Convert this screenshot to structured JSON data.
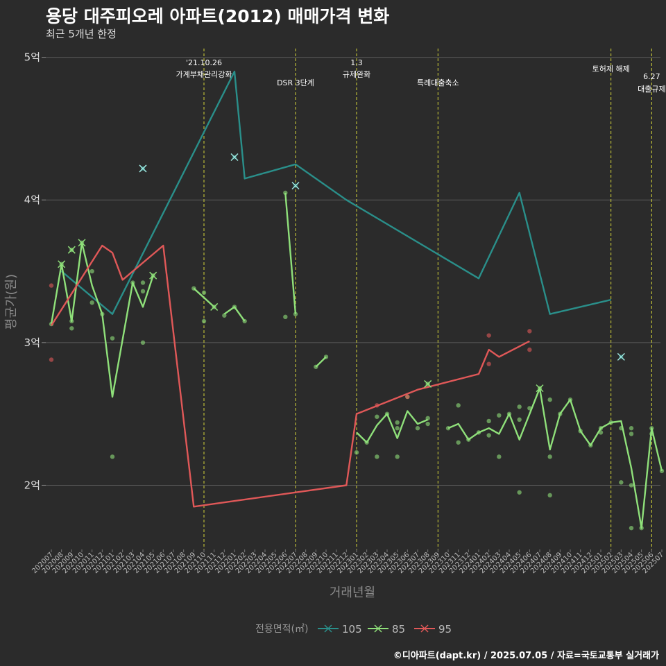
{
  "header": {
    "title": "용당 대주피오레 아파트(2012) 매매가격 변화",
    "subtitle": "최근 5개년 한정"
  },
  "caption": "©디아파트(dapt.kr) / 2025.07.05 / 자료=국토교통부 실거래가",
  "colors": {
    "background": "#2b2b2b",
    "grid": "#5a5a5a",
    "event_line": "#d4d43a",
    "series_105": "#2a8f8a",
    "series_85": "#8fe07a",
    "series_95": "#e05858"
  },
  "chart_data": {
    "type": "line",
    "xlabel": "거래년월",
    "ylabel": "평균가(원)",
    "ylim": [
      1.55,
      5.1
    ],
    "yticks": [
      {
        "v": 2,
        "label": "2억"
      },
      {
        "v": 3,
        "label": "3억"
      },
      {
        "v": 4,
        "label": "4억"
      },
      {
        "v": 5,
        "label": "5억"
      }
    ],
    "categories": [
      "202007",
      "202008",
      "202009",
      "202010",
      "202011",
      "202012",
      "202101",
      "202102",
      "202103",
      "202104",
      "202105",
      "202106",
      "202107",
      "202108",
      "202109",
      "202110",
      "202111",
      "202112",
      "202201",
      "202202",
      "202203",
      "202204",
      "202205",
      "202206",
      "202207",
      "202208",
      "202209",
      "202210",
      "202211",
      "202212",
      "202301",
      "202302",
      "202303",
      "202304",
      "202305",
      "202306",
      "202307",
      "202308",
      "202309",
      "202310",
      "202311",
      "202312",
      "202401",
      "202402",
      "202403",
      "202404",
      "202405",
      "202406",
      "202407",
      "202408",
      "202409",
      "202410",
      "202411",
      "202412",
      "202501",
      "202502",
      "202503",
      "202504",
      "202505",
      "202506",
      "202507"
    ],
    "legend": {
      "title": "전용면적(㎡)",
      "position": "bottom"
    },
    "grid": true,
    "events": [
      {
        "x": "202110",
        "label1": "'21.10.26",
        "label2": "가계부채관리강화"
      },
      {
        "x": "202207",
        "label1": "",
        "label2": "DSR 3단계"
      },
      {
        "x": "202301",
        "label1": "1.3",
        "label2": "규제완화"
      },
      {
        "x": "202309",
        "label1": "",
        "label2": "특례대출축소"
      },
      {
        "x": "202502",
        "label1": "",
        "label2": "토허제 해제"
      },
      {
        "x": "202506",
        "label1": "6.27",
        "label2": "대출규제"
      }
    ],
    "series": [
      {
        "name": "105",
        "color": "#2a8f8a",
        "line": [
          [
            "202008",
            3.5
          ],
          [
            "202101",
            3.2
          ],
          [
            "202201",
            4.9
          ],
          [
            "202202",
            4.15
          ],
          [
            "202207",
            4.25
          ],
          [
            "202212",
            4.0
          ],
          [
            "202401",
            3.45
          ],
          [
            "202405",
            4.05
          ],
          [
            "202408",
            3.2
          ],
          [
            "202502",
            3.3
          ]
        ],
        "points": [
          [
            "202104",
            4.22
          ],
          [
            "202201",
            4.3
          ],
          [
            "202207",
            4.1
          ],
          [
            "202503",
            2.9
          ]
        ]
      },
      {
        "name": "85",
        "color": "#8fe07a",
        "line": [
          [
            "202007",
            3.13
          ],
          [
            "202008",
            3.55
          ],
          [
            "202009",
            3.15
          ],
          [
            "202010",
            3.7
          ],
          [
            "202011",
            3.4
          ],
          [
            "202012",
            3.2
          ],
          [
            "202101",
            2.62
          ],
          [
            "202103",
            3.42
          ],
          [
            "202104",
            3.25
          ],
          [
            "202105",
            3.47
          ],
          [
            null,
            null
          ],
          [
            "202109",
            3.38
          ],
          [
            "202111",
            3.25
          ],
          [
            null,
            null
          ],
          [
            "202112",
            3.2
          ],
          [
            "202201",
            3.25
          ],
          [
            "202202",
            3.15
          ],
          [
            null,
            null
          ],
          [
            "202206",
            4.05
          ],
          [
            "202207",
            3.2
          ],
          [
            null,
            null
          ],
          [
            "202209",
            2.83
          ],
          [
            "202210",
            2.9
          ],
          [
            null,
            null
          ],
          [
            "202301",
            2.37
          ],
          [
            "202302",
            2.3
          ],
          [
            "202303",
            2.42
          ],
          [
            "202304",
            2.5
          ],
          [
            "202305",
            2.33
          ],
          [
            "202306",
            2.52
          ],
          [
            "202307",
            2.43
          ],
          [
            "202308",
            2.46
          ],
          [
            null,
            null
          ],
          [
            "202310",
            2.4
          ],
          [
            "202311",
            2.43
          ],
          [
            "202312",
            2.32
          ],
          [
            "202401",
            2.37
          ],
          [
            "202402",
            2.4
          ],
          [
            "202403",
            2.36
          ],
          [
            "202404",
            2.5
          ],
          [
            "202405",
            2.32
          ],
          [
            "202407",
            2.68
          ],
          [
            "202408",
            2.25
          ],
          [
            "202409",
            2.5
          ],
          [
            "202410",
            2.6
          ],
          [
            "202411",
            2.38
          ],
          [
            "202412",
            2.28
          ],
          [
            "202501",
            2.4
          ],
          [
            "202502",
            2.44
          ],
          [
            "202503",
            2.45
          ],
          [
            "202504",
            2.12
          ],
          [
            "202505",
            1.7
          ],
          [
            "202506",
            2.4
          ],
          [
            "202507",
            2.1
          ]
        ],
        "points": [
          [
            "202007",
            3.13
          ],
          [
            "202008",
            3.55
          ],
          [
            "202009",
            3.65
          ],
          [
            "202009",
            3.1
          ],
          [
            "202009",
            3.15
          ],
          [
            "202010",
            3.7
          ],
          [
            "202011",
            3.5
          ],
          [
            "202011",
            3.28
          ],
          [
            "202012",
            3.2
          ],
          [
            "202101",
            3.03
          ],
          [
            "202101",
            2.2
          ],
          [
            "202103",
            3.42
          ],
          [
            "202104",
            3.42
          ],
          [
            "202104",
            3.36
          ],
          [
            "202104",
            3.0
          ],
          [
            "202105",
            3.47
          ],
          [
            "202109",
            3.38
          ],
          [
            "202110",
            3.35
          ],
          [
            "202110",
            3.15
          ],
          [
            "202111",
            3.25
          ],
          [
            "202112",
            3.19
          ],
          [
            "202201",
            3.25
          ],
          [
            "202202",
            3.15
          ],
          [
            "202206",
            3.18
          ],
          [
            "202206",
            4.05
          ],
          [
            "202207",
            3.2
          ],
          [
            "202209",
            2.83
          ],
          [
            "202210",
            2.9
          ],
          [
            "202301",
            2.23
          ],
          [
            "202302",
            2.3
          ],
          [
            "202303",
            2.48
          ],
          [
            "202303",
            2.2
          ],
          [
            "202304",
            2.5
          ],
          [
            "202305",
            2.44
          ],
          [
            "202305",
            2.4
          ],
          [
            "202305",
            2.2
          ],
          [
            "202306",
            2.62
          ],
          [
            "202307",
            2.4
          ],
          [
            "202308",
            2.71
          ],
          [
            "202308",
            2.47
          ],
          [
            "202308",
            2.43
          ],
          [
            "202310",
            2.4
          ],
          [
            "202311",
            2.56
          ],
          [
            "202311",
            2.3
          ],
          [
            "202312",
            2.32
          ],
          [
            "202401",
            2.37
          ],
          [
            "202402",
            2.45
          ],
          [
            "202402",
            2.35
          ],
          [
            "202403",
            2.49
          ],
          [
            "202403",
            2.2
          ],
          [
            "202404",
            2.5
          ],
          [
            "202405",
            2.55
          ],
          [
            "202405",
            2.46
          ],
          [
            "202405",
            1.95
          ],
          [
            "202406",
            2.54
          ],
          [
            "202407",
            2.68
          ],
          [
            "202408",
            2.6
          ],
          [
            "202408",
            2.2
          ],
          [
            "202408",
            1.93
          ],
          [
            "202409",
            2.5
          ],
          [
            "202410",
            2.6
          ],
          [
            "202411",
            2.38
          ],
          [
            "202412",
            2.28
          ],
          [
            "202501",
            2.4
          ],
          [
            "202501",
            2.37
          ],
          [
            "202502",
            2.44
          ],
          [
            "202503",
            2.4
          ],
          [
            "202503",
            2.02
          ],
          [
            "202504",
            2.4
          ],
          [
            "202504",
            2.36
          ],
          [
            "202504",
            2.0
          ],
          [
            "202504",
            1.7
          ],
          [
            "202505",
            1.7
          ],
          [
            "202506",
            2.4
          ],
          [
            "202506",
            2.36
          ],
          [
            "202507",
            2.1
          ]
        ]
      },
      {
        "name": "95",
        "color": "#e05858",
        "line": [
          [
            "202007",
            3.12
          ],
          [
            "202012",
            3.68
          ],
          [
            "202101",
            3.63
          ],
          [
            "202102",
            3.44
          ],
          [
            "202106",
            3.68
          ],
          [
            "202109",
            1.85
          ],
          [
            "202212",
            2.0
          ],
          [
            "202301",
            2.5
          ],
          [
            "202307",
            2.67
          ],
          [
            "202401",
            2.78
          ],
          [
            "202402",
            2.95
          ],
          [
            "202403",
            2.9
          ],
          [
            "202406",
            3.01
          ]
        ],
        "points": [
          [
            "202007",
            3.4
          ],
          [
            "202007",
            2.88
          ],
          [
            "202303",
            2.56
          ],
          [
            "202306",
            2.62
          ],
          [
            "202402",
            3.05
          ],
          [
            "202402",
            2.85
          ],
          [
            "202406",
            3.08
          ],
          [
            "202406",
            2.95
          ]
        ]
      }
    ]
  }
}
